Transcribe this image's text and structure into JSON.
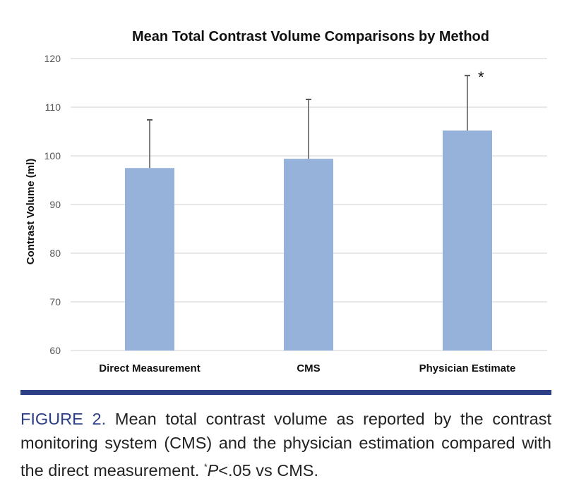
{
  "chart_data": {
    "type": "bar",
    "title": "Mean Total Contrast Volume Comparisons by Method",
    "xlabel": "",
    "ylabel": "Contrast Volume (ml)",
    "categories": [
      "Direct Measurement",
      "CMS",
      "Physician Estimate"
    ],
    "values": [
      97.5,
      99.4,
      105.2
    ],
    "error_upper": [
      107.4,
      111.6,
      116.5
    ],
    "annotations": [
      "",
      "",
      "*"
    ],
    "ylim": [
      60,
      120
    ],
    "yticks": [
      60,
      70,
      80,
      90,
      100,
      110,
      120
    ],
    "grid": true,
    "bar_color": "#97b2da"
  },
  "caption": {
    "label": "FIGURE 2.",
    "text": " Mean total contrast volume as reported by the contrast monitoring system (CMS) and the physician estimation compared with the direct measurement. ",
    "footnote_mark": "*",
    "footnote_p": "P",
    "footnote_rest": "<.05 vs CMS."
  },
  "colors": {
    "accent": "#2c3e86"
  }
}
